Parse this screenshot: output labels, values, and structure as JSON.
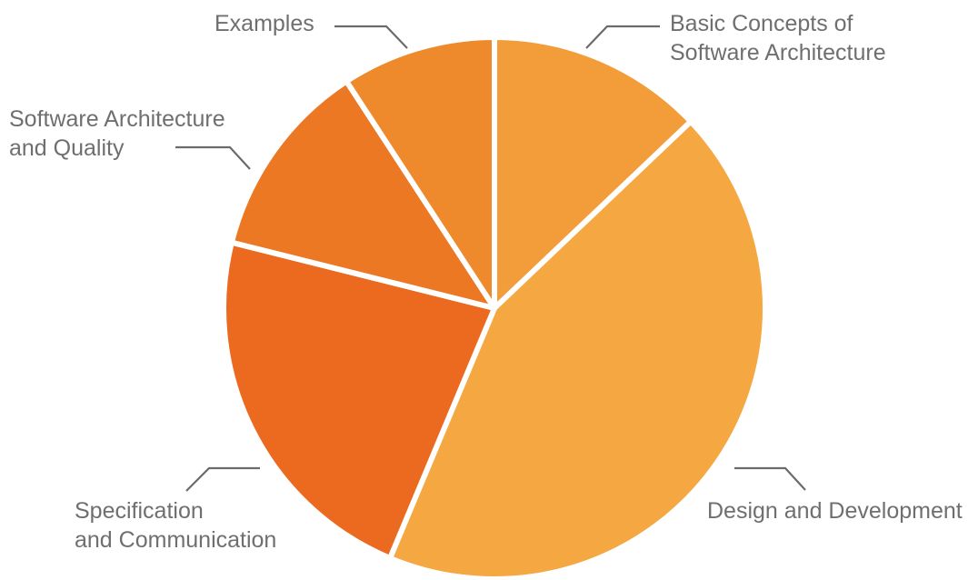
{
  "chart_data": {
    "type": "pie",
    "title": "",
    "start_angle_deg": 0,
    "direction": "clockwise",
    "slices": [
      {
        "label_lines": [
          "Basic Concepts of",
          "Software Architecture"
        ],
        "value": 12.9,
        "color": "#F29C3A"
      },
      {
        "label_lines": [
          "Design and Development"
        ],
        "value": 43.4,
        "color": "#F5A742"
      },
      {
        "label_lines": [
          "Specification",
          "and Communication"
        ],
        "value": 22.6,
        "color": "#EC6A1F"
      },
      {
        "label_lines": [
          "Software Architecture",
          "and Quality"
        ],
        "value": 11.9,
        "color": "#EC7823"
      },
      {
        "label_lines": [
          "Examples"
        ],
        "value": 9.2,
        "color": "#EE8A2B"
      }
    ]
  }
}
